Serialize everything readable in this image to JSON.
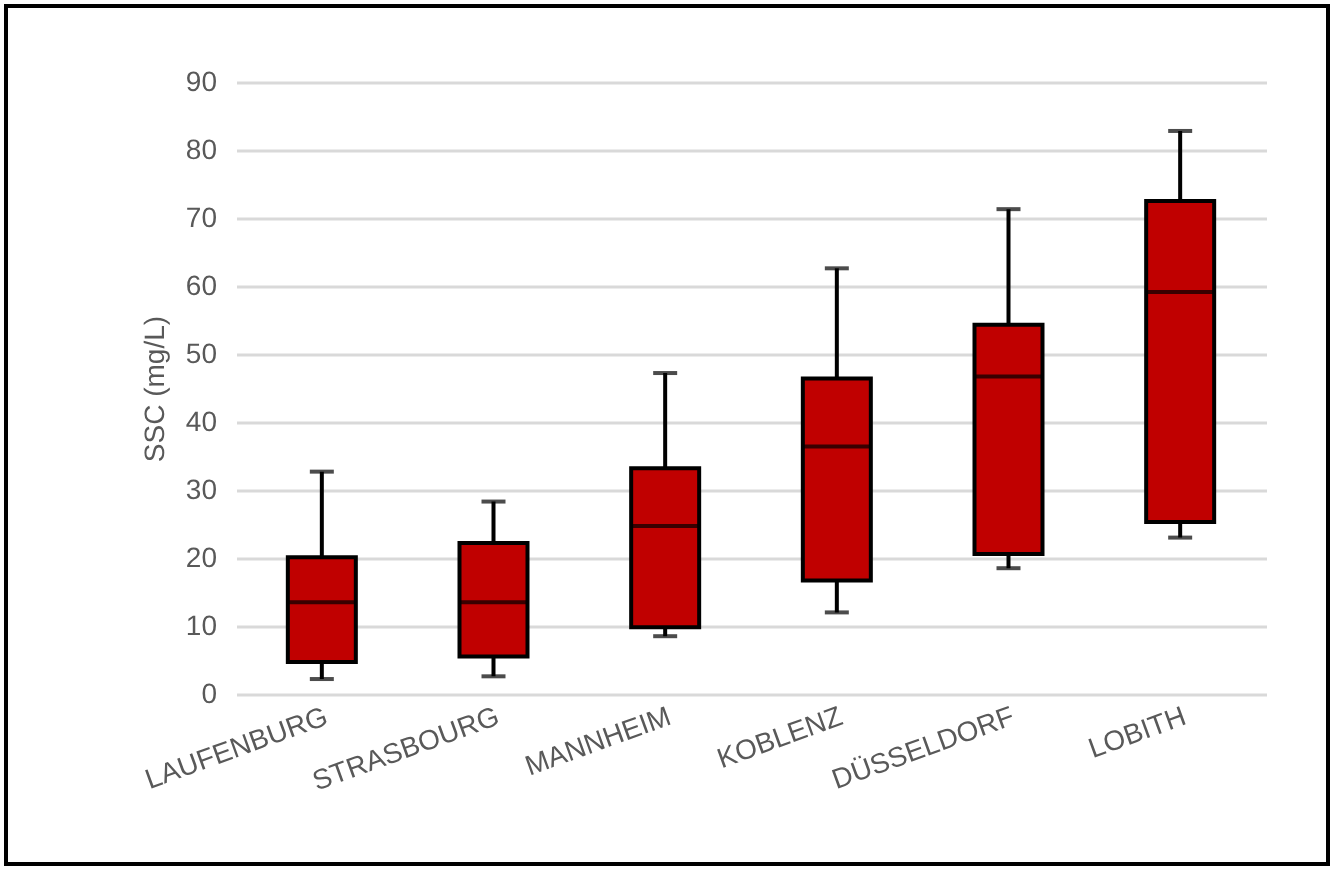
{
  "chart_data": {
    "type": "box",
    "ylabel": "SSC (mg/L)",
    "categories": [
      "LAUFENBURG",
      "STRASBOURG",
      "MANNHEIM",
      "KOBLENZ",
      "DÜSSELDORF",
      "LOBITH"
    ],
    "series": [
      {
        "color": "#c00000",
        "boxes": [
          {
            "low": 2.2,
            "q1": 4.7,
            "median": 13.5,
            "q3": 20.1,
            "high": 32.7
          },
          {
            "low": 2.6,
            "q1": 5.5,
            "median": 13.5,
            "q3": 22.2,
            "high": 28.3
          },
          {
            "low": 8.5,
            "q1": 9.8,
            "median": 24.7,
            "q3": 33.2,
            "high": 47.2
          },
          {
            "low": 12.0,
            "q1": 16.7,
            "median": 36.4,
            "q3": 46.4,
            "high": 62.6
          },
          {
            "low": 18.5,
            "q1": 20.6,
            "median": 46.7,
            "q3": 54.3,
            "high": 71.3
          },
          {
            "low": 23.0,
            "q1": 25.3,
            "median": 59.1,
            "q3": 72.5,
            "high": 82.8
          }
        ]
      }
    ],
    "ylim": [
      0,
      90
    ],
    "yticks": [
      0,
      10,
      20,
      30,
      40,
      50,
      60,
      70,
      80,
      90
    ],
    "grid": "y"
  }
}
